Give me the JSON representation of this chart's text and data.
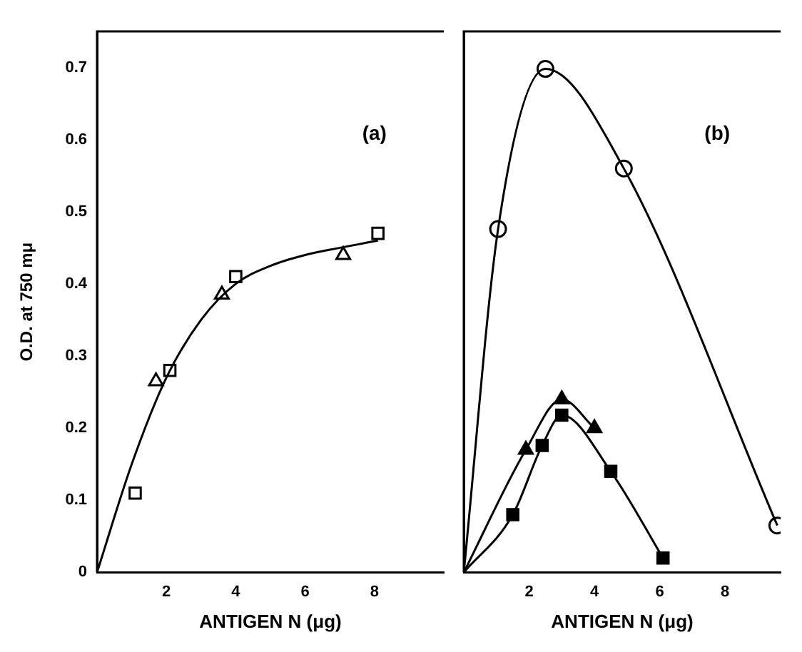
{
  "chart_data": [
    {
      "type": "scatter",
      "annotations": [
        "(a)"
      ],
      "xlabel": "ANTIGEN N (μg)",
      "ylabel": "O.D. at 750 mμ",
      "xlim": [
        0,
        10
      ],
      "xticks": [
        2,
        4,
        6,
        8
      ],
      "ylim": [
        0,
        0.75
      ],
      "yticks": [
        0,
        0.1,
        0.2,
        0.3,
        0.4,
        0.5,
        0.6,
        0.7
      ],
      "grid": false,
      "legend": false,
      "series": [
        {
          "type": "line",
          "marker": "none",
          "color": "#000000",
          "x": [
            0,
            1,
            2,
            3,
            4,
            5,
            6,
            7,
            8.1
          ],
          "values": [
            0,
            0.15,
            0.27,
            0.35,
            0.4,
            0.425,
            0.44,
            0.45,
            0.46
          ]
        },
        {
          "type": "scatter",
          "marker": "square",
          "color": "#ffffff",
          "x": [
            1.1,
            2.1,
            4.0,
            8.1
          ],
          "values": [
            0.11,
            0.28,
            0.41,
            0.47
          ]
        },
        {
          "type": "scatter",
          "marker": "triangle",
          "color": "#ffffff",
          "x": [
            1.7,
            3.6,
            7.1
          ],
          "values": [
            0.265,
            0.385,
            0.44
          ]
        }
      ]
    },
    {
      "type": "scatter",
      "annotations": [
        "(b)"
      ],
      "xlabel": "ANTIGEN N (μg)",
      "xlim": [
        0,
        9.7
      ],
      "xticks": [
        2,
        4,
        6,
        8
      ],
      "ylim": [
        0,
        0.75
      ],
      "yticks": [
        0,
        0.1,
        0.2,
        0.3,
        0.4,
        0.5,
        0.6,
        0.7
      ],
      "tick_labels": "x",
      "grid": false,
      "legend": false,
      "series": [
        {
          "type": "line",
          "marker": "none",
          "color": "#000000",
          "x": [
            0,
            1.05,
            2.5,
            4.9,
            9.6
          ],
          "values": [
            0,
            0.476,
            0.698,
            0.56,
            0.065
          ]
        },
        {
          "type": "line",
          "marker": "none",
          "color": "#000000",
          "x": [
            0,
            1.9,
            3.0,
            4.0
          ],
          "values": [
            0,
            0.17,
            0.24,
            0.2
          ]
        },
        {
          "type": "line",
          "marker": "none",
          "color": "#000000",
          "x": [
            0,
            1.5,
            2.4,
            3.0,
            4.5,
            6.1
          ],
          "values": [
            0,
            0.08,
            0.176,
            0.218,
            0.14,
            0.02
          ]
        },
        {
          "type": "scatter",
          "marker": "circle",
          "color": "#ffffff",
          "x": [
            1.05,
            2.5,
            4.9,
            9.6
          ],
          "values": [
            0.476,
            0.698,
            0.56,
            0.065
          ]
        },
        {
          "type": "scatter",
          "marker": "triangle",
          "color": "#000000",
          "x": [
            1.9,
            3.0,
            4.0
          ],
          "values": [
            0.17,
            0.24,
            0.2
          ]
        },
        {
          "type": "scatter",
          "marker": "square",
          "color": "#000000",
          "x": [
            1.5,
            2.4,
            3.0,
            4.5,
            6.1
          ],
          "values": [
            0.08,
            0.176,
            0.218,
            0.14,
            0.02
          ]
        }
      ]
    }
  ]
}
